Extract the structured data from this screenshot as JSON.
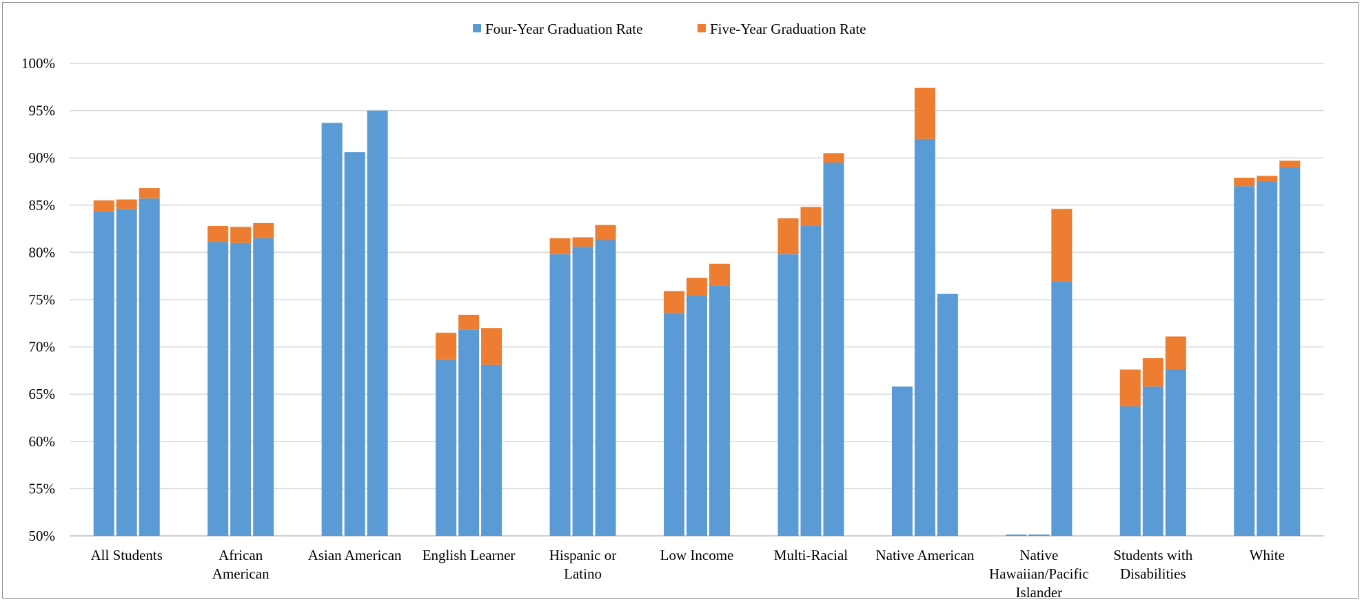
{
  "chart_data": {
    "type": "bar",
    "stacked": true,
    "grid": true,
    "legend_position": "top",
    "ylim": [
      0.5,
      1.0
    ],
    "yticks": [
      "50%",
      "55%",
      "60%",
      "65%",
      "70%",
      "75%",
      "80%",
      "85%",
      "90%",
      "95%",
      "100%"
    ],
    "categories": [
      [
        "All Students"
      ],
      [
        "African",
        "American"
      ],
      [
        "Asian American"
      ],
      [
        "English Learner"
      ],
      [
        "Hispanic or",
        "Latino"
      ],
      [
        "Low Income"
      ],
      [
        "Multi-Racial"
      ],
      [
        "Native American"
      ],
      [
        "Native",
        "Hawaiian/Pacific",
        "Islander"
      ],
      [
        "Students with",
        "Disabilities"
      ],
      [
        "White"
      ]
    ],
    "bars_per_category": 3,
    "series": [
      {
        "name": "Four-Year Graduation Rate",
        "color": "#5B9BD5",
        "values": [
          [
            0.843,
            0.846,
            0.857
          ],
          [
            0.811,
            0.81,
            0.815
          ],
          [
            0.937,
            0.906,
            0.95
          ],
          [
            0.686,
            0.718,
            0.681
          ],
          [
            0.798,
            0.806,
            0.813
          ],
          [
            0.736,
            0.754,
            0.765
          ],
          [
            0.798,
            0.828,
            0.895
          ],
          [
            0.658,
            0.92,
            0.756
          ],
          [
            0.498,
            0.498,
            0.769
          ],
          [
            0.637,
            0.658,
            0.676
          ],
          [
            0.87,
            0.875,
            0.89
          ]
        ]
      },
      {
        "name": "Five-Year Graduation Rate",
        "color": "#ED7D31",
        "values": [
          [
            0.855,
            0.856,
            0.868
          ],
          [
            0.828,
            0.827,
            0.831
          ],
          [
            null,
            null,
            null
          ],
          [
            0.715,
            0.734,
            0.72
          ],
          [
            0.815,
            0.816,
            0.829
          ],
          [
            0.759,
            0.773,
            0.788
          ],
          [
            0.836,
            0.848,
            0.905
          ],
          [
            null,
            0.974,
            null
          ],
          [
            null,
            null,
            0.846
          ],
          [
            0.676,
            0.688,
            0.711
          ],
          [
            0.879,
            0.881,
            0.897
          ]
        ]
      }
    ]
  }
}
